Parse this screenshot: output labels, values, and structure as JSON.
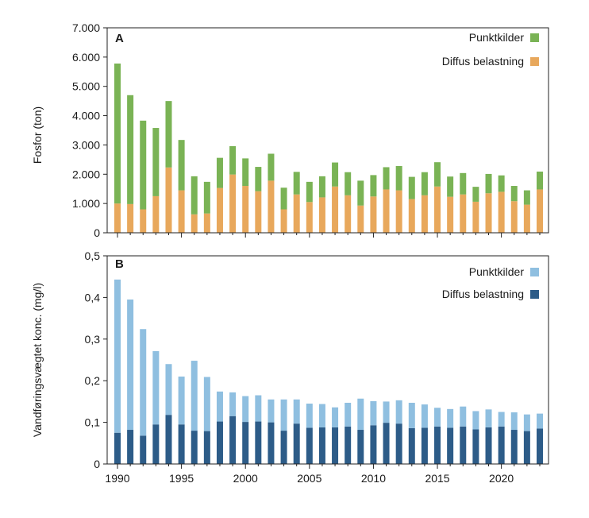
{
  "chart_data": [
    {
      "type": "bar",
      "stacked": true,
      "panel_label": "A",
      "ylabel": "Fosfor (ton)",
      "xlabel": "",
      "ylim": [
        0,
        7000
      ],
      "yticks": [
        "0",
        "1.000",
        "2.000",
        "3.000",
        "4.000",
        "5.000",
        "6.000",
        "7.000"
      ],
      "legend_position": "top-right",
      "x": [
        1990,
        1991,
        1992,
        1993,
        1994,
        1995,
        1996,
        1997,
        1998,
        1999,
        2000,
        2001,
        2002,
        2003,
        2004,
        2005,
        2006,
        2007,
        2008,
        2009,
        2010,
        2011,
        2012,
        2013,
        2014,
        2015,
        2016,
        2017,
        2018,
        2019,
        2020,
        2021,
        2022,
        2023
      ],
      "series": [
        {
          "name": "Diffus belastning",
          "color": "#e8a85c",
          "values": [
            1000,
            980,
            800,
            1250,
            2230,
            1450,
            630,
            660,
            1530,
            1990,
            1600,
            1420,
            1780,
            800,
            1310,
            1050,
            1210,
            1580,
            1280,
            930,
            1240,
            1480,
            1450,
            1150,
            1280,
            1580,
            1230,
            1310,
            1060,
            1350,
            1400,
            1080,
            960,
            1480
          ]
        },
        {
          "name": "Punktkilder",
          "color": "#7ab355",
          "values": [
            4780,
            3720,
            3030,
            2330,
            2270,
            1720,
            1300,
            1080,
            1030,
            970,
            940,
            830,
            920,
            740,
            770,
            690,
            720,
            820,
            790,
            850,
            730,
            760,
            830,
            760,
            790,
            830,
            690,
            730,
            510,
            660,
            560,
            520,
            490,
            610
          ]
        }
      ]
    },
    {
      "type": "bar",
      "stacked": true,
      "panel_label": "B",
      "ylabel": "Vandføringsvægtet konc. (mg/l)",
      "xlabel": "",
      "ylim": [
        0,
        0.5
      ],
      "yticks": [
        "0",
        "0,1",
        "0,2",
        "0,3",
        "0,4",
        "0,5"
      ],
      "xticks": [
        "1990",
        "1995",
        "2000",
        "2005",
        "2010",
        "2015",
        "2020"
      ],
      "legend_position": "top-right",
      "x": [
        1990,
        1991,
        1992,
        1993,
        1994,
        1995,
        1996,
        1997,
        1998,
        1999,
        2000,
        2001,
        2002,
        2003,
        2004,
        2005,
        2006,
        2007,
        2008,
        2009,
        2010,
        2011,
        2012,
        2013,
        2014,
        2015,
        2016,
        2017,
        2018,
        2019,
        2020,
        2021,
        2022,
        2023
      ],
      "series": [
        {
          "name": "Diffus belastning",
          "color": "#2d5c88",
          "values": [
            0.075,
            0.082,
            0.068,
            0.095,
            0.118,
            0.095,
            0.08,
            0.079,
            0.102,
            0.115,
            0.101,
            0.102,
            0.1,
            0.08,
            0.097,
            0.087,
            0.088,
            0.088,
            0.09,
            0.082,
            0.093,
            0.099,
            0.097,
            0.086,
            0.087,
            0.09,
            0.087,
            0.09,
            0.083,
            0.088,
            0.09,
            0.082,
            0.079,
            0.085
          ]
        },
        {
          "name": "Punktkilder",
          "color": "#8fbfe0",
          "values": [
            0.368,
            0.313,
            0.256,
            0.176,
            0.122,
            0.115,
            0.168,
            0.13,
            0.072,
            0.057,
            0.062,
            0.063,
            0.055,
            0.075,
            0.058,
            0.058,
            0.056,
            0.048,
            0.057,
            0.075,
            0.058,
            0.051,
            0.056,
            0.061,
            0.056,
            0.045,
            0.045,
            0.048,
            0.044,
            0.043,
            0.035,
            0.042,
            0.04,
            0.036
          ]
        }
      ]
    }
  ]
}
